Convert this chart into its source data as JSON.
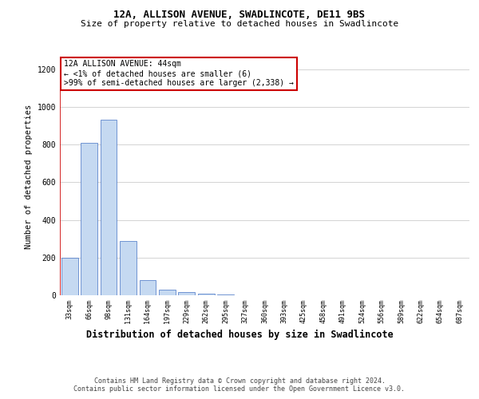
{
  "title1": "12A, ALLISON AVENUE, SWADLINCOTE, DE11 9BS",
  "title2": "Size of property relative to detached houses in Swadlincote",
  "xlabel": "Distribution of detached houses by size in Swadlincote",
  "ylabel": "Number of detached properties",
  "bins": [
    "33sqm",
    "66sqm",
    "98sqm",
    "131sqm",
    "164sqm",
    "197sqm",
    "229sqm",
    "262sqm",
    "295sqm",
    "327sqm",
    "360sqm",
    "393sqm",
    "425sqm",
    "458sqm",
    "491sqm",
    "524sqm",
    "556sqm",
    "589sqm",
    "622sqm",
    "654sqm",
    "687sqm"
  ],
  "values": [
    200,
    810,
    930,
    290,
    80,
    30,
    15,
    8,
    5,
    0,
    0,
    0,
    0,
    0,
    0,
    0,
    0,
    0,
    0,
    0,
    0
  ],
  "bar_color": "#c5d9f1",
  "bar_edge_color": "#4472c4",
  "annotation_text": "12A ALLISON AVENUE: 44sqm\n← <1% of detached houses are smaller (6)\n>99% of semi-detached houses are larger (2,338) →",
  "annotation_box_color": "#ffffff",
  "annotation_box_edge_color": "#cc0000",
  "ylim": [
    0,
    1260
  ],
  "yticks": [
    0,
    200,
    400,
    600,
    800,
    1000,
    1200
  ],
  "footnote1": "Contains HM Land Registry data © Crown copyright and database right 2024.",
  "footnote2": "Contains public sector information licensed under the Open Government Licence v3.0.",
  "background_color": "#ffffff",
  "grid_color": "#cccccc",
  "title1_fontsize": 9,
  "title2_fontsize": 8,
  "xlabel_fontsize": 8.5,
  "ylabel_fontsize": 7.5,
  "tick_fontsize": 6,
  "annotation_fontsize": 7,
  "footnote_fontsize": 6
}
